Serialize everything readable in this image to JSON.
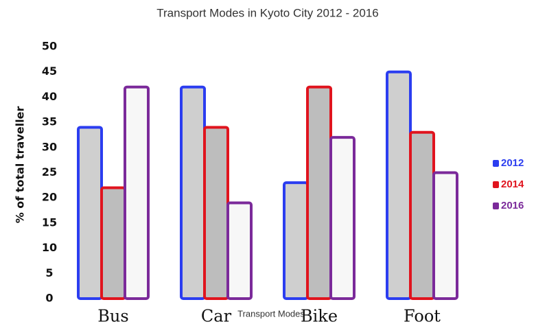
{
  "chart_data": {
    "type": "bar",
    "title": "Transport Modes in Kyoto City 2012 - 2016",
    "x_label": "Transport Modes",
    "y_label": "% of total traveller",
    "categories": [
      "Bus",
      "Car",
      "Bike",
      "Foot"
    ],
    "series": [
      {
        "name": "2012",
        "color": "#2b3df0",
        "values": [
          34,
          42,
          23,
          45
        ]
      },
      {
        "name": "2014",
        "color": "#e0141e",
        "values": [
          22,
          34,
          42,
          33
        ]
      },
      {
        "name": "2016",
        "color": "#7b2a9a",
        "values": [
          42,
          19,
          32,
          25
        ]
      }
    ],
    "ylim": [
      0,
      50
    ],
    "yticks": [
      0,
      5,
      10,
      15,
      20,
      25,
      30,
      35,
      40,
      45,
      50
    ],
    "grid": false,
    "legend": "right"
  }
}
